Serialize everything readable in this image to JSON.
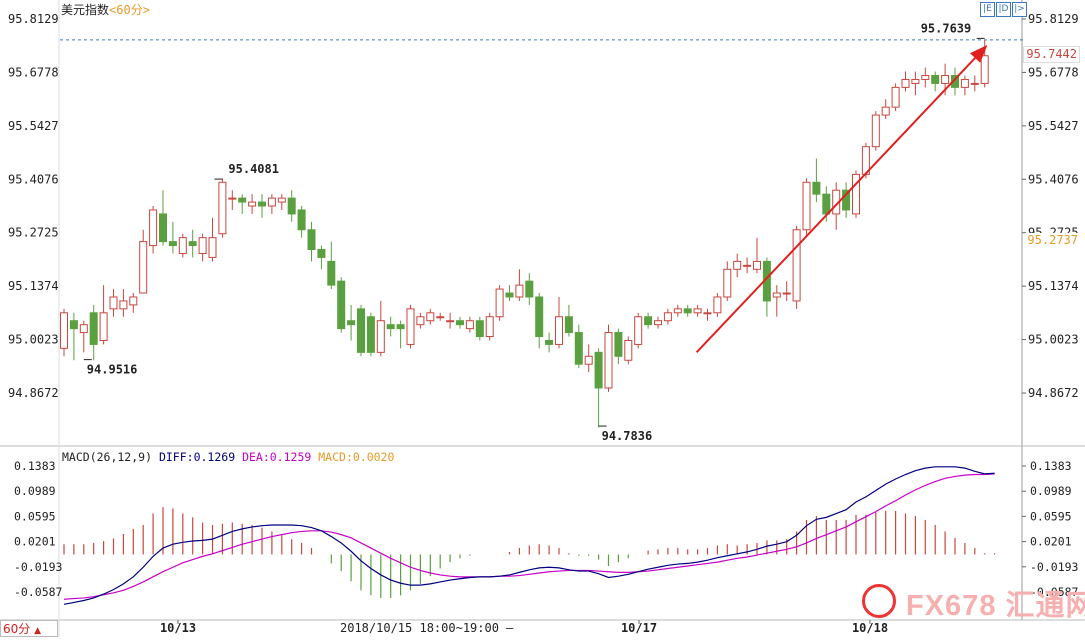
{
  "header": {
    "title": "美元指数",
    "period": "<60分>"
  },
  "toolbar": {
    "buttons": [
      "|E",
      "|D",
      "|>"
    ]
  },
  "price_axis": {
    "ticks": [
      "95.8129",
      "95.6778",
      "95.5427",
      "95.4076",
      "95.2725",
      "95.1374",
      "95.0023",
      "94.8672"
    ],
    "last_price_tag": "95.7442",
    "crosshair_tag": "95.2737"
  },
  "macd_panel": {
    "header": "MACD(26,12,9)",
    "diff_text": "DIFF:0.1269",
    "dea_text": "DEA:0.1259",
    "macd_text": "MACD:0.0020",
    "ticks": [
      "0.1383",
      "0.0989",
      "0.0595",
      "0.0201",
      "-0.0193",
      "-0.0587"
    ]
  },
  "time_axis": {
    "labels": [
      "10/13",
      "10/17",
      "10/18"
    ],
    "crosshair_label": "2018/10/15 18:00~19:00"
  },
  "period_button": "60分",
  "logo_text": "FX678 汇通网",
  "colors": {
    "up": "#c8473f",
    "down": "#5aa040",
    "diff": "#000080",
    "dea": "#c800c8",
    "arrow": "#e02020"
  },
  "chart_data": [
    {
      "type": "candlestick",
      "title": "美元指数",
      "ylim": [
        94.78,
        95.82
      ],
      "annotations": [
        {
          "text": "95.7639",
          "value": 95.7639
        },
        {
          "text": "95.4081",
          "value": 95.4081
        },
        {
          "text": "94.9516",
          "value": 94.9516
        },
        {
          "text": "94.7836",
          "value": 94.7836
        }
      ],
      "candles": [
        {
          "o": 94.98,
          "c": 95.07,
          "h": 95.08,
          "l": 94.96
        },
        {
          "o": 95.05,
          "c": 95.03,
          "h": 95.07,
          "l": 94.95
        },
        {
          "o": 95.02,
          "c": 95.04,
          "h": 95.05,
          "l": 94.97
        },
        {
          "o": 95.07,
          "c": 94.99,
          "h": 95.09,
          "l": 94.95
        },
        {
          "o": 95.0,
          "c": 95.07,
          "h": 95.14,
          "l": 94.99
        },
        {
          "o": 95.08,
          "c": 95.11,
          "h": 95.13,
          "l": 95.06
        },
        {
          "o": 95.08,
          "c": 95.1,
          "h": 95.13,
          "l": 95.06
        },
        {
          "o": 95.09,
          "c": 95.11,
          "h": 95.12,
          "l": 95.07
        },
        {
          "o": 95.12,
          "c": 95.25,
          "h": 95.28,
          "l": 95.12
        },
        {
          "o": 95.24,
          "c": 95.33,
          "h": 95.34,
          "l": 95.22
        },
        {
          "o": 95.32,
          "c": 95.25,
          "h": 95.38,
          "l": 95.24
        },
        {
          "o": 95.25,
          "c": 95.24,
          "h": 95.3,
          "l": 95.22
        },
        {
          "o": 95.22,
          "c": 95.26,
          "h": 95.27,
          "l": 95.21
        },
        {
          "o": 95.25,
          "c": 95.24,
          "h": 95.28,
          "l": 95.21
        },
        {
          "o": 95.22,
          "c": 95.26,
          "h": 95.27,
          "l": 95.2
        },
        {
          "o": 95.21,
          "c": 95.26,
          "h": 95.31,
          "l": 95.2
        },
        {
          "o": 95.27,
          "c": 95.4,
          "h": 95.41,
          "l": 95.26
        },
        {
          "o": 95.36,
          "c": 95.36,
          "h": 95.38,
          "l": 95.33
        },
        {
          "o": 95.36,
          "c": 95.35,
          "h": 95.37,
          "l": 95.32
        },
        {
          "o": 95.34,
          "c": 95.35,
          "h": 95.37,
          "l": 95.32
        },
        {
          "o": 95.35,
          "c": 95.34,
          "h": 95.37,
          "l": 95.31
        },
        {
          "o": 95.34,
          "c": 95.36,
          "h": 95.37,
          "l": 95.32
        },
        {
          "o": 95.35,
          "c": 95.36,
          "h": 95.37,
          "l": 95.33
        },
        {
          "o": 95.36,
          "c": 95.32,
          "h": 95.38,
          "l": 95.3
        },
        {
          "o": 95.33,
          "c": 95.28,
          "h": 95.34,
          "l": 95.26
        },
        {
          "o": 95.28,
          "c": 95.23,
          "h": 95.3,
          "l": 95.2
        },
        {
          "o": 95.23,
          "c": 95.21,
          "h": 95.24,
          "l": 95.18
        },
        {
          "o": 95.2,
          "c": 95.14,
          "h": 95.25,
          "l": 95.13
        },
        {
          "o": 95.15,
          "c": 95.03,
          "h": 95.16,
          "l": 95.02
        },
        {
          "o": 95.05,
          "c": 95.04,
          "h": 95.09,
          "l": 95.0
        },
        {
          "o": 95.08,
          "c": 94.97,
          "h": 95.09,
          "l": 94.96
        },
        {
          "o": 95.06,
          "c": 94.97,
          "h": 95.07,
          "l": 94.96
        },
        {
          "o": 94.97,
          "c": 95.05,
          "h": 95.1,
          "l": 94.96
        },
        {
          "o": 95.04,
          "c": 95.03,
          "h": 95.06,
          "l": 95.01
        },
        {
          "o": 95.04,
          "c": 95.03,
          "h": 95.05,
          "l": 94.98
        },
        {
          "o": 94.99,
          "c": 95.08,
          "h": 95.09,
          "l": 94.98
        },
        {
          "o": 95.04,
          "c": 95.06,
          "h": 95.07,
          "l": 95.03
        },
        {
          "o": 95.05,
          "c": 95.07,
          "h": 95.08,
          "l": 95.04
        },
        {
          "o": 95.06,
          "c": 95.06,
          "h": 95.07,
          "l": 95.05
        },
        {
          "o": 95.05,
          "c": 95.05,
          "h": 95.07,
          "l": 95.03
        },
        {
          "o": 95.05,
          "c": 95.04,
          "h": 95.06,
          "l": 95.03
        },
        {
          "o": 95.03,
          "c": 95.05,
          "h": 95.06,
          "l": 95.02
        },
        {
          "o": 95.05,
          "c": 95.01,
          "h": 95.06,
          "l": 95.0
        },
        {
          "o": 95.01,
          "c": 95.06,
          "h": 95.07,
          "l": 95.0
        },
        {
          "o": 95.06,
          "c": 95.13,
          "h": 95.14,
          "l": 95.05
        },
        {
          "o": 95.12,
          "c": 95.11,
          "h": 95.14,
          "l": 95.1
        },
        {
          "o": 95.11,
          "c": 95.14,
          "h": 95.18,
          "l": 95.1
        },
        {
          "o": 95.15,
          "c": 95.11,
          "h": 95.17,
          "l": 95.09
        },
        {
          "o": 95.11,
          "c": 95.01,
          "h": 95.12,
          "l": 94.98
        },
        {
          "o": 95.0,
          "c": 94.99,
          "h": 95.02,
          "l": 94.97
        },
        {
          "o": 94.99,
          "c": 95.06,
          "h": 95.11,
          "l": 94.98
        },
        {
          "o": 95.06,
          "c": 95.02,
          "h": 95.09,
          "l": 95.01
        },
        {
          "o": 95.02,
          "c": 94.94,
          "h": 95.04,
          "l": 94.93
        },
        {
          "o": 94.94,
          "c": 94.96,
          "h": 94.99,
          "l": 94.92
        },
        {
          "o": 94.97,
          "c": 94.88,
          "h": 94.98,
          "l": 94.78
        },
        {
          "o": 94.88,
          "c": 95.02,
          "h": 95.04,
          "l": 94.87
        },
        {
          "o": 95.02,
          "c": 94.96,
          "h": 95.03,
          "l": 94.94
        },
        {
          "o": 94.95,
          "c": 95.0,
          "h": 95.01,
          "l": 94.94
        },
        {
          "o": 94.99,
          "c": 95.06,
          "h": 95.07,
          "l": 94.98
        },
        {
          "o": 95.06,
          "c": 95.04,
          "h": 95.07,
          "l": 95.03
        },
        {
          "o": 95.04,
          "c": 95.05,
          "h": 95.06,
          "l": 95.03
        },
        {
          "o": 95.05,
          "c": 95.07,
          "h": 95.08,
          "l": 95.04
        },
        {
          "o": 95.07,
          "c": 95.08,
          "h": 95.09,
          "l": 95.06
        },
        {
          "o": 95.08,
          "c": 95.07,
          "h": 95.09,
          "l": 95.06
        },
        {
          "o": 95.07,
          "c": 95.08,
          "h": 95.09,
          "l": 95.06
        },
        {
          "o": 95.07,
          "c": 95.07,
          "h": 95.08,
          "l": 95.05
        },
        {
          "o": 95.07,
          "c": 95.11,
          "h": 95.12,
          "l": 95.06
        },
        {
          "o": 95.11,
          "c": 95.18,
          "h": 95.2,
          "l": 95.1
        },
        {
          "o": 95.18,
          "c": 95.2,
          "h": 95.22,
          "l": 95.16
        },
        {
          "o": 95.19,
          "c": 95.19,
          "h": 95.21,
          "l": 95.17
        },
        {
          "o": 95.18,
          "c": 95.2,
          "h": 95.26,
          "l": 95.17
        },
        {
          "o": 95.2,
          "c": 95.1,
          "h": 95.21,
          "l": 95.06
        },
        {
          "o": 95.11,
          "c": 95.12,
          "h": 95.14,
          "l": 95.06
        },
        {
          "o": 95.12,
          "c": 95.12,
          "h": 95.15,
          "l": 95.1
        },
        {
          "o": 95.1,
          "c": 95.28,
          "h": 95.29,
          "l": 95.08
        },
        {
          "o": 95.28,
          "c": 95.4,
          "h": 95.41,
          "l": 95.26
        },
        {
          "o": 95.4,
          "c": 95.37,
          "h": 95.46,
          "l": 95.35
        },
        {
          "o": 95.37,
          "c": 95.32,
          "h": 95.39,
          "l": 95.3
        },
        {
          "o": 95.32,
          "c": 95.38,
          "h": 95.4,
          "l": 95.28
        },
        {
          "o": 95.38,
          "c": 95.33,
          "h": 95.4,
          "l": 95.31
        },
        {
          "o": 95.32,
          "c": 95.42,
          "h": 95.43,
          "l": 95.31
        },
        {
          "o": 95.42,
          "c": 95.49,
          "h": 95.5,
          "l": 95.41
        },
        {
          "o": 95.49,
          "c": 95.57,
          "h": 95.58,
          "l": 95.48
        },
        {
          "o": 95.57,
          "c": 95.59,
          "h": 95.61,
          "l": 95.56
        },
        {
          "o": 95.59,
          "c": 95.64,
          "h": 95.65,
          "l": 95.58
        },
        {
          "o": 95.64,
          "c": 95.66,
          "h": 95.68,
          "l": 95.63
        },
        {
          "o": 95.65,
          "c": 95.66,
          "h": 95.68,
          "l": 95.62
        },
        {
          "o": 95.66,
          "c": 95.67,
          "h": 95.69,
          "l": 95.64
        },
        {
          "o": 95.67,
          "c": 95.65,
          "h": 95.68,
          "l": 95.63
        },
        {
          "o": 95.65,
          "c": 95.67,
          "h": 95.7,
          "l": 95.62
        },
        {
          "o": 95.67,
          "c": 95.64,
          "h": 95.69,
          "l": 95.62
        },
        {
          "o": 95.64,
          "c": 95.66,
          "h": 95.67,
          "l": 95.62
        },
        {
          "o": 95.65,
          "c": 95.65,
          "h": 95.67,
          "l": 95.63
        },
        {
          "o": 95.65,
          "c": 95.72,
          "h": 95.76,
          "l": 95.64
        }
      ],
      "trend_arrow": {
        "from_index": 64,
        "from_value": 94.97,
        "to_index": 93,
        "to_value": 95.74
      }
    },
    {
      "type": "macd",
      "ylim": [
        -0.08,
        0.145
      ],
      "series": [
        {
          "name": "DIFF",
          "values": [
            -0.078,
            -0.075,
            -0.072,
            -0.068,
            -0.062,
            -0.055,
            -0.046,
            -0.035,
            -0.02,
            -0.003,
            0.01,
            0.016,
            0.019,
            0.021,
            0.022,
            0.024,
            0.03,
            0.036,
            0.04,
            0.043,
            0.045,
            0.046,
            0.046,
            0.046,
            0.045,
            0.042,
            0.037,
            0.028,
            0.018,
            0.005,
            -0.01,
            -0.022,
            -0.032,
            -0.04,
            -0.045,
            -0.048,
            -0.048,
            -0.046,
            -0.043,
            -0.04,
            -0.038,
            -0.036,
            -0.035,
            -0.035,
            -0.034,
            -0.032,
            -0.028,
            -0.024,
            -0.021,
            -0.02,
            -0.021,
            -0.024,
            -0.026,
            -0.026,
            -0.03,
            -0.036,
            -0.034,
            -0.031,
            -0.027,
            -0.023,
            -0.02,
            -0.017,
            -0.015,
            -0.014,
            -0.012,
            -0.009,
            -0.005,
            -0.002,
            0.001,
            0.004,
            0.008,
            0.013,
            0.016,
            0.02,
            0.03,
            0.045,
            0.055,
            0.058,
            0.064,
            0.07,
            0.082,
            0.09,
            0.1,
            0.11,
            0.118,
            0.125,
            0.131,
            0.135,
            0.137,
            0.137,
            0.137,
            0.135,
            0.13,
            0.126,
            0.127
          ]
        },
        {
          "name": "DEA",
          "values": [
            -0.07,
            -0.069,
            -0.068,
            -0.066,
            -0.063,
            -0.06,
            -0.056,
            -0.05,
            -0.043,
            -0.035,
            -0.027,
            -0.02,
            -0.013,
            -0.008,
            -0.003,
            0.001,
            0.006,
            0.011,
            0.016,
            0.02,
            0.024,
            0.028,
            0.031,
            0.034,
            0.036,
            0.037,
            0.037,
            0.035,
            0.031,
            0.026,
            0.018,
            0.01,
            0.002,
            -0.006,
            -0.013,
            -0.02,
            -0.025,
            -0.029,
            -0.032,
            -0.034,
            -0.035,
            -0.035,
            -0.035,
            -0.035,
            -0.034,
            -0.034,
            -0.033,
            -0.031,
            -0.029,
            -0.027,
            -0.026,
            -0.025,
            -0.025,
            -0.025,
            -0.026,
            -0.027,
            -0.028,
            -0.028,
            -0.027,
            -0.026,
            -0.024,
            -0.022,
            -0.02,
            -0.018,
            -0.016,
            -0.014,
            -0.012,
            -0.009,
            -0.006,
            -0.004,
            -0.001,
            0.002,
            0.005,
            0.008,
            0.012,
            0.018,
            0.025,
            0.031,
            0.037,
            0.043,
            0.051,
            0.059,
            0.067,
            0.076,
            0.084,
            0.093,
            0.101,
            0.108,
            0.114,
            0.119,
            0.122,
            0.124,
            0.125,
            0.125,
            0.126
          ]
        },
        {
          "name": "MACD",
          "values": [
            0.016,
            0.016,
            0.016,
            0.018,
            0.021,
            0.025,
            0.032,
            0.04,
            0.046,
            0.064,
            0.074,
            0.072,
            0.064,
            0.058,
            0.05,
            0.046,
            0.048,
            0.05,
            0.048,
            0.046,
            0.042,
            0.036,
            0.03,
            0.024,
            0.018,
            0.01,
            0.0,
            -0.014,
            -0.026,
            -0.042,
            -0.056,
            -0.064,
            -0.068,
            -0.068,
            -0.064,
            -0.056,
            -0.046,
            -0.034,
            -0.022,
            -0.012,
            -0.006,
            -0.002,
            0.0,
            0.0,
            0.0,
            0.004,
            0.01,
            0.014,
            0.016,
            0.014,
            0.01,
            0.002,
            -0.002,
            -0.002,
            -0.008,
            -0.018,
            -0.012,
            -0.006,
            0.0,
            0.006,
            0.008,
            0.01,
            0.01,
            0.008,
            0.008,
            0.01,
            0.014,
            0.016,
            0.014,
            0.016,
            0.018,
            0.022,
            0.022,
            0.024,
            0.036,
            0.054,
            0.06,
            0.054,
            0.054,
            0.054,
            0.062,
            0.062,
            0.066,
            0.068,
            0.068,
            0.064,
            0.06,
            0.054,
            0.046,
            0.036,
            0.026,
            0.018,
            0.01,
            0.002,
            0.002
          ]
        }
      ]
    }
  ]
}
